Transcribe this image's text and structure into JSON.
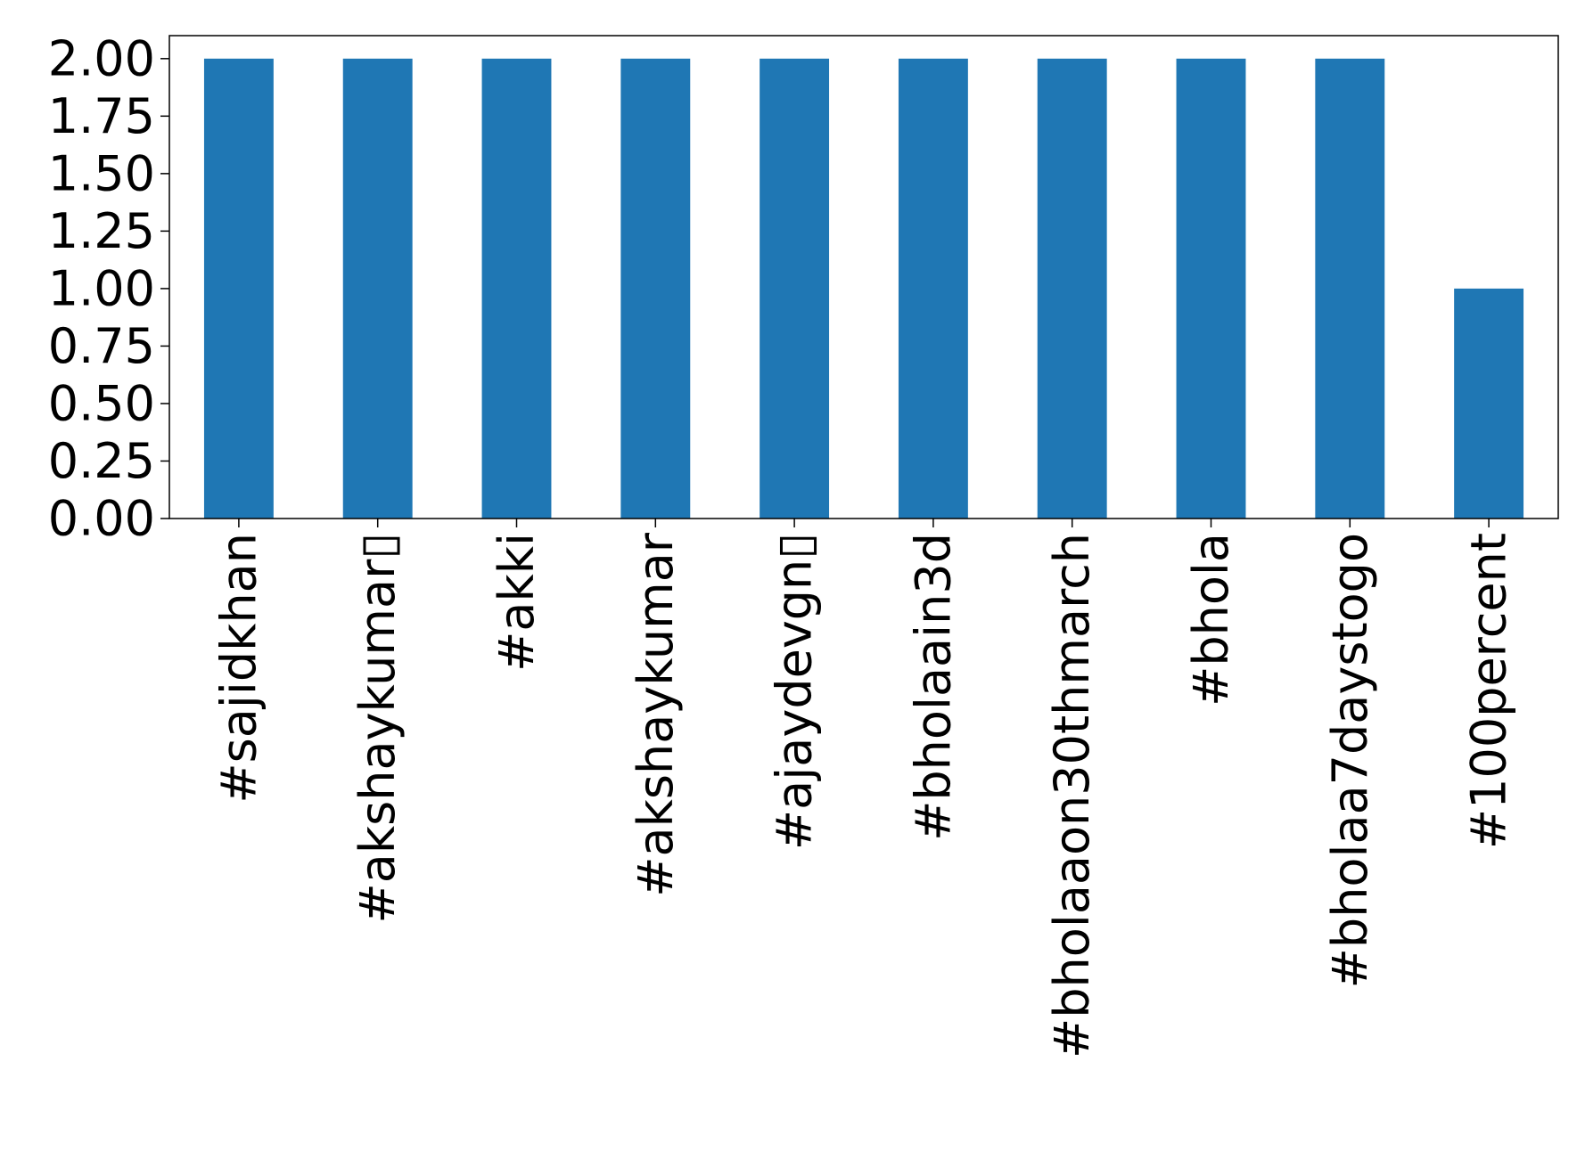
{
  "chart_data": {
    "type": "bar",
    "title": "",
    "xlabel": "",
    "ylabel": "",
    "categories": [
      "#sajidkhan",
      "#akshaykumar▯",
      "#akki",
      "#akshaykumar",
      "#ajaydevgn▯",
      "#bholaain3d",
      "#bholaaon30thmarch",
      "#bhola",
      "#bholaa7daystogo",
      "#100percent"
    ],
    "values": [
      2,
      2,
      2,
      2,
      2,
      2,
      2,
      2,
      2,
      1
    ],
    "ylim": [
      0,
      2.1
    ],
    "yticks": [
      "0.00",
      "0.25",
      "0.50",
      "0.75",
      "1.00",
      "1.25",
      "1.50",
      "1.75",
      "2.00"
    ],
    "ytick_values": [
      0,
      0.25,
      0.5,
      0.75,
      1.0,
      1.25,
      1.5,
      1.75,
      2.0
    ],
    "grid": false,
    "legend": "none",
    "colors": {
      "bar": "#1f77b4",
      "axis": "#000000",
      "background": "#ffffff"
    }
  }
}
